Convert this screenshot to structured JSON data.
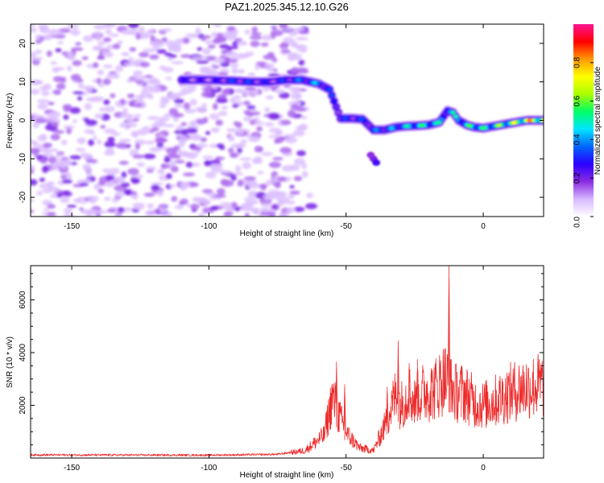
{
  "chart_data": [
    {
      "type": "heatmap",
      "title": "PAZ1.2025.345.12.10.G26",
      "xlabel": "Height of straight line (km)",
      "ylabel": "Frequency (Hz)",
      "xlim": [
        -165,
        22
      ],
      "ylim": [
        -25,
        25
      ],
      "xticks": [
        -150,
        -100,
        -50,
        0
      ],
      "yticks": [
        -20,
        -10,
        0,
        10,
        20
      ],
      "colorbar": {
        "label": "Normalized spectral amplitude",
        "range": [
          0,
          1
        ],
        "ticks": [
          "0.0",
          "0.2",
          "0.4",
          "0.6",
          "0.8"
        ],
        "colormap": [
          "#ffffff",
          "#d8b8ff",
          "#8a2be2",
          "#2b00ff",
          "#0066ff",
          "#00e5ff",
          "#00ff66",
          "#aaff00",
          "#ffff00",
          "#ff9900",
          "#ff0000",
          "#ff1493"
        ]
      },
      "ridge": {
        "name": "signal ridge",
        "x": [
          -110,
          -100,
          -92,
          -85,
          -78,
          -72,
          -66,
          -60,
          -56,
          -52,
          -48,
          -44,
          -40,
          -36,
          -32,
          -28,
          -24,
          -20,
          -16,
          -13,
          -11,
          -9,
          -6,
          -3,
          0,
          4,
          8,
          12,
          16,
          22
        ],
        "y": [
          10.5,
          10.5,
          10.3,
          10,
          10,
          10.5,
          10.5,
          9.5,
          8,
          0.5,
          0.5,
          0.3,
          -2.5,
          -2.5,
          -1.8,
          -1.5,
          -1.4,
          -1.2,
          -0.5,
          2.5,
          2,
          0,
          -1.2,
          -1.8,
          -2,
          -1.5,
          -1,
          -0.5,
          0,
          0
        ],
        "amplitude": [
          0.25,
          0.22,
          0.3,
          0.3,
          0.25,
          0.3,
          0.35,
          0.4,
          0.3,
          0.3,
          0.3,
          0.3,
          0.35,
          0.35,
          0.4,
          0.45,
          0.5,
          0.5,
          0.45,
          0.4,
          0.45,
          0.45,
          0.5,
          0.55,
          0.5,
          0.55,
          0.6,
          0.65,
          0.75,
          0.75
        ]
      },
      "noise_region_x": [
        -165,
        -65
      ]
    },
    {
      "type": "line",
      "xlabel": "Height of straight line (km)",
      "ylabel": "SNR (10 * v/v)",
      "xlim": [
        -165,
        22
      ],
      "ylim": [
        0,
        7300
      ],
      "xticks": [
        -150,
        -100,
        -50,
        0
      ],
      "yticks": [
        2000,
        4000,
        6000
      ],
      "color": "#ee2a2a",
      "envelope": {
        "x": [
          -165,
          -100,
          -75,
          -65,
          -58,
          -55,
          -53,
          -50,
          -45,
          -40,
          -35,
          -32,
          -30,
          -27,
          -25,
          -22,
          -18,
          -14,
          -12,
          -10,
          -7,
          -3,
          0,
          5,
          10,
          15,
          22
        ],
        "y": [
          120,
          110,
          140,
          300,
          900,
          2400,
          1800,
          1000,
          400,
          300,
          1500,
          2500,
          2100,
          2600,
          2200,
          2600,
          2700,
          3200,
          2800,
          2600,
          2600,
          2200,
          2100,
          2300,
          2600,
          2800,
          2900
        ]
      },
      "peaks": [
        {
          "x": -53.5,
          "y": 3650
        },
        {
          "x": -50.5,
          "y": 2800
        },
        {
          "x": -35,
          "y": 2700
        },
        {
          "x": -31,
          "y": 4450
        },
        {
          "x": -27,
          "y": 3600
        },
        {
          "x": -24,
          "y": 3750
        },
        {
          "x": -19,
          "y": 3200
        },
        {
          "x": -14.5,
          "y": 3600
        },
        {
          "x": -12.5,
          "y": 7300
        },
        {
          "x": -8,
          "y": 3000
        }
      ]
    }
  ]
}
